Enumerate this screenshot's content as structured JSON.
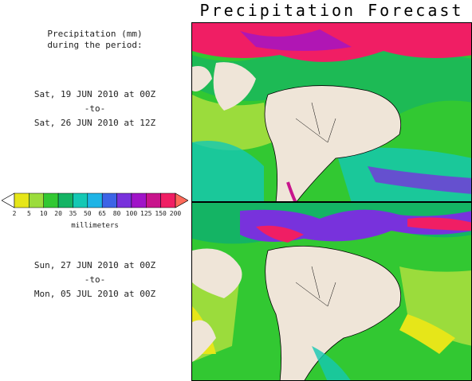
{
  "title": "Precipitation Forecast",
  "header": {
    "line1": "Precipitation (mm)",
    "line2": "during the period:"
  },
  "period1": {
    "start": "Sat, 19 JUN 2010 at 00Z",
    "to": "-to-",
    "end": "Sat, 26 JUN 2010 at 12Z"
  },
  "period2": {
    "start": "Sun, 27 JUN 2010 at 00Z",
    "to": "-to-",
    "end": "Mon, 05 JUL 2010 at 00Z"
  },
  "legend": {
    "units": "millimeters",
    "labels": [
      "2",
      "5",
      "10",
      "20",
      "35",
      "50",
      "65",
      "80",
      "100",
      "125",
      "150",
      "200"
    ],
    "colors": [
      "#e6e619",
      "#9bdc3c",
      "#32c832",
      "#14b464",
      "#14c8b4",
      "#1eb4e6",
      "#3c64e6",
      "#7832dc",
      "#a014c8",
      "#c8148c",
      "#f01e64"
    ],
    "arrow_left": "#ffffff",
    "arrow_right": "#ff6a5a"
  },
  "map": {
    "land_color": "#efe5d8",
    "heavy_rain_color": "#f01e64"
  }
}
